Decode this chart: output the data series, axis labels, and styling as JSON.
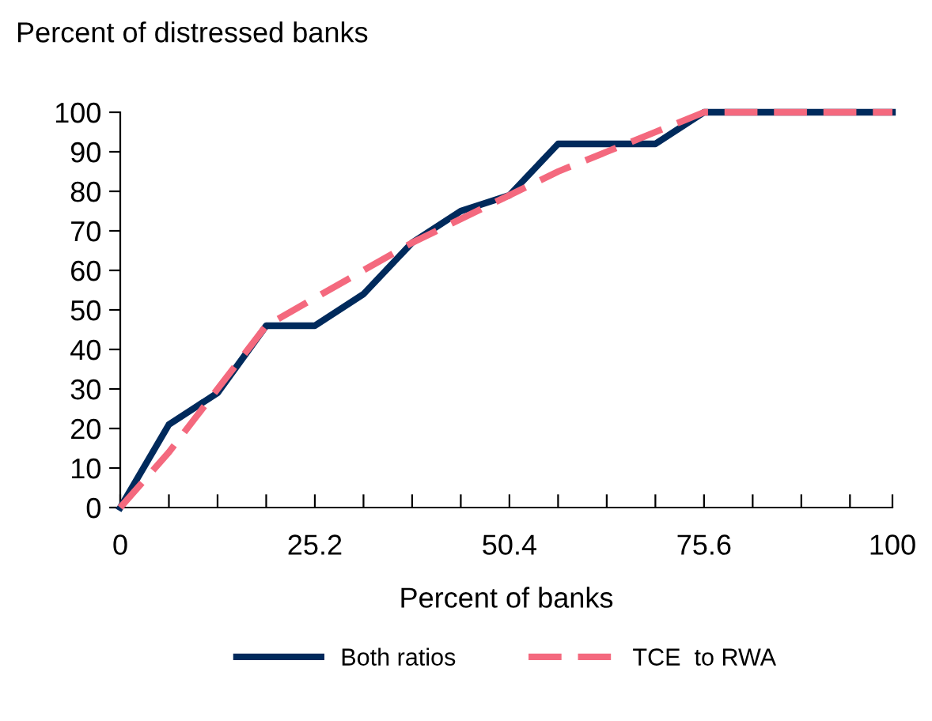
{
  "chart_data": {
    "type": "line",
    "ylabel": "Percent of distressed banks",
    "xlabel": "Percent of banks",
    "x": [
      0,
      6.3,
      12.6,
      18.9,
      25.2,
      31.5,
      37.8,
      44.1,
      50.4,
      56.7,
      63,
      69.3,
      75.6,
      81.9,
      88.2,
      94.5,
      100
    ],
    "series": [
      {
        "name": "Both ratios",
        "color": "#002a5c",
        "line_style": "solid",
        "values": [
          0,
          21,
          29,
          46,
          46,
          54,
          67,
          75,
          79,
          92,
          92,
          92,
          100,
          100,
          100,
          100,
          100
        ]
      },
      {
        "name": "TCE  to RWA",
        "color": "#f4697e",
        "line_style": "dashed",
        "values": [
          0,
          14,
          30,
          46,
          53,
          60,
          67,
          73,
          79,
          85,
          90,
          95,
          100,
          100,
          100,
          100,
          100
        ]
      }
    ],
    "xlim": [
      0,
      100
    ],
    "ylim": [
      0,
      100
    ],
    "xticks": [
      0,
      {
        "value": 6.3,
        "label": null
      },
      {
        "value": 12.6,
        "label": null
      },
      {
        "value": 18.9,
        "label": null
      },
      25.2,
      {
        "value": 31.5,
        "label": null
      },
      {
        "value": 37.8,
        "label": null
      },
      {
        "value": 44.1,
        "label": null
      },
      50.4,
      {
        "value": 56.7,
        "label": null
      },
      {
        "value": 63,
        "label": null
      },
      {
        "value": 69.3,
        "label": null
      },
      75.6,
      {
        "value": 81.9,
        "label": null
      },
      {
        "value": 88.2,
        "label": null
      },
      {
        "value": 94.5,
        "label": null
      },
      100
    ],
    "yticks": [
      0,
      10,
      20,
      30,
      40,
      50,
      60,
      70,
      80,
      90,
      100
    ],
    "grid": false,
    "legend": "bottom",
    "marker": "none"
  }
}
